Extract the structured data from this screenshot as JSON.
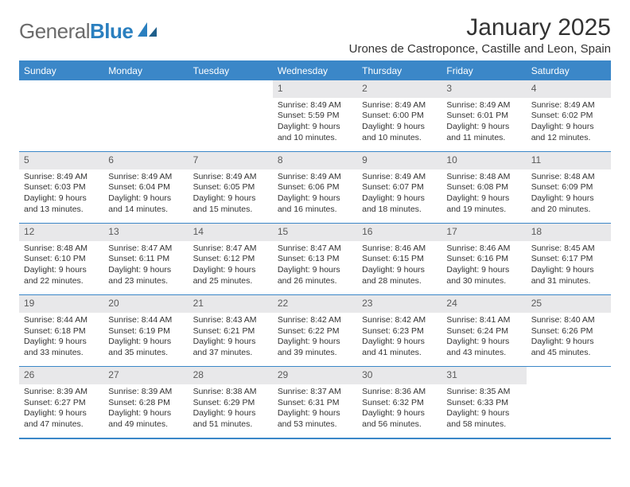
{
  "logo": {
    "word1": "General",
    "word2": "Blue"
  },
  "title": "January 2025",
  "location": "Urones de Castroponce, Castille and Leon, Spain",
  "colors": {
    "header_bg": "#3b87c8",
    "header_text": "#ffffff",
    "daynum_bg": "#e8e8ea",
    "daynum_text": "#5a5a5a",
    "body_text": "#333333",
    "logo_gray": "#6b6b6b",
    "logo_blue": "#2a7fbf",
    "border": "#3b87c8",
    "page_bg": "#ffffff"
  },
  "style": {
    "title_fontsize": 30,
    "location_fontsize": 15,
    "weekday_fontsize": 12,
    "daynum_fontsize": 12,
    "cell_fontsize": 10.5,
    "columns": 7
  },
  "weekdays": [
    "Sunday",
    "Monday",
    "Tuesday",
    "Wednesday",
    "Thursday",
    "Friday",
    "Saturday"
  ],
  "weeks": [
    [
      null,
      null,
      null,
      {
        "n": "1",
        "sr": "8:49 AM",
        "ss": "5:59 PM",
        "dl1": "Daylight: 9 hours",
        "dl2": "and 10 minutes."
      },
      {
        "n": "2",
        "sr": "8:49 AM",
        "ss": "6:00 PM",
        "dl1": "Daylight: 9 hours",
        "dl2": "and 10 minutes."
      },
      {
        "n": "3",
        "sr": "8:49 AM",
        "ss": "6:01 PM",
        "dl1": "Daylight: 9 hours",
        "dl2": "and 11 minutes."
      },
      {
        "n": "4",
        "sr": "8:49 AM",
        "ss": "6:02 PM",
        "dl1": "Daylight: 9 hours",
        "dl2": "and 12 minutes."
      }
    ],
    [
      {
        "n": "5",
        "sr": "8:49 AM",
        "ss": "6:03 PM",
        "dl1": "Daylight: 9 hours",
        "dl2": "and 13 minutes."
      },
      {
        "n": "6",
        "sr": "8:49 AM",
        "ss": "6:04 PM",
        "dl1": "Daylight: 9 hours",
        "dl2": "and 14 minutes."
      },
      {
        "n": "7",
        "sr": "8:49 AM",
        "ss": "6:05 PM",
        "dl1": "Daylight: 9 hours",
        "dl2": "and 15 minutes."
      },
      {
        "n": "8",
        "sr": "8:49 AM",
        "ss": "6:06 PM",
        "dl1": "Daylight: 9 hours",
        "dl2": "and 16 minutes."
      },
      {
        "n": "9",
        "sr": "8:49 AM",
        "ss": "6:07 PM",
        "dl1": "Daylight: 9 hours",
        "dl2": "and 18 minutes."
      },
      {
        "n": "10",
        "sr": "8:48 AM",
        "ss": "6:08 PM",
        "dl1": "Daylight: 9 hours",
        "dl2": "and 19 minutes."
      },
      {
        "n": "11",
        "sr": "8:48 AM",
        "ss": "6:09 PM",
        "dl1": "Daylight: 9 hours",
        "dl2": "and 20 minutes."
      }
    ],
    [
      {
        "n": "12",
        "sr": "8:48 AM",
        "ss": "6:10 PM",
        "dl1": "Daylight: 9 hours",
        "dl2": "and 22 minutes."
      },
      {
        "n": "13",
        "sr": "8:47 AM",
        "ss": "6:11 PM",
        "dl1": "Daylight: 9 hours",
        "dl2": "and 23 minutes."
      },
      {
        "n": "14",
        "sr": "8:47 AM",
        "ss": "6:12 PM",
        "dl1": "Daylight: 9 hours",
        "dl2": "and 25 minutes."
      },
      {
        "n": "15",
        "sr": "8:47 AM",
        "ss": "6:13 PM",
        "dl1": "Daylight: 9 hours",
        "dl2": "and 26 minutes."
      },
      {
        "n": "16",
        "sr": "8:46 AM",
        "ss": "6:15 PM",
        "dl1": "Daylight: 9 hours",
        "dl2": "and 28 minutes."
      },
      {
        "n": "17",
        "sr": "8:46 AM",
        "ss": "6:16 PM",
        "dl1": "Daylight: 9 hours",
        "dl2": "and 30 minutes."
      },
      {
        "n": "18",
        "sr": "8:45 AM",
        "ss": "6:17 PM",
        "dl1": "Daylight: 9 hours",
        "dl2": "and 31 minutes."
      }
    ],
    [
      {
        "n": "19",
        "sr": "8:44 AM",
        "ss": "6:18 PM",
        "dl1": "Daylight: 9 hours",
        "dl2": "and 33 minutes."
      },
      {
        "n": "20",
        "sr": "8:44 AM",
        "ss": "6:19 PM",
        "dl1": "Daylight: 9 hours",
        "dl2": "and 35 minutes."
      },
      {
        "n": "21",
        "sr": "8:43 AM",
        "ss": "6:21 PM",
        "dl1": "Daylight: 9 hours",
        "dl2": "and 37 minutes."
      },
      {
        "n": "22",
        "sr": "8:42 AM",
        "ss": "6:22 PM",
        "dl1": "Daylight: 9 hours",
        "dl2": "and 39 minutes."
      },
      {
        "n": "23",
        "sr": "8:42 AM",
        "ss": "6:23 PM",
        "dl1": "Daylight: 9 hours",
        "dl2": "and 41 minutes."
      },
      {
        "n": "24",
        "sr": "8:41 AM",
        "ss": "6:24 PM",
        "dl1": "Daylight: 9 hours",
        "dl2": "and 43 minutes."
      },
      {
        "n": "25",
        "sr": "8:40 AM",
        "ss": "6:26 PM",
        "dl1": "Daylight: 9 hours",
        "dl2": "and 45 minutes."
      }
    ],
    [
      {
        "n": "26",
        "sr": "8:39 AM",
        "ss": "6:27 PM",
        "dl1": "Daylight: 9 hours",
        "dl2": "and 47 minutes."
      },
      {
        "n": "27",
        "sr": "8:39 AM",
        "ss": "6:28 PM",
        "dl1": "Daylight: 9 hours",
        "dl2": "and 49 minutes."
      },
      {
        "n": "28",
        "sr": "8:38 AM",
        "ss": "6:29 PM",
        "dl1": "Daylight: 9 hours",
        "dl2": "and 51 minutes."
      },
      {
        "n": "29",
        "sr": "8:37 AM",
        "ss": "6:31 PM",
        "dl1": "Daylight: 9 hours",
        "dl2": "and 53 minutes."
      },
      {
        "n": "30",
        "sr": "8:36 AM",
        "ss": "6:32 PM",
        "dl1": "Daylight: 9 hours",
        "dl2": "and 56 minutes."
      },
      {
        "n": "31",
        "sr": "8:35 AM",
        "ss": "6:33 PM",
        "dl1": "Daylight: 9 hours",
        "dl2": "and 58 minutes."
      },
      null
    ]
  ],
  "labelPrefix": {
    "sunrise": "Sunrise: ",
    "sunset": "Sunset: "
  }
}
